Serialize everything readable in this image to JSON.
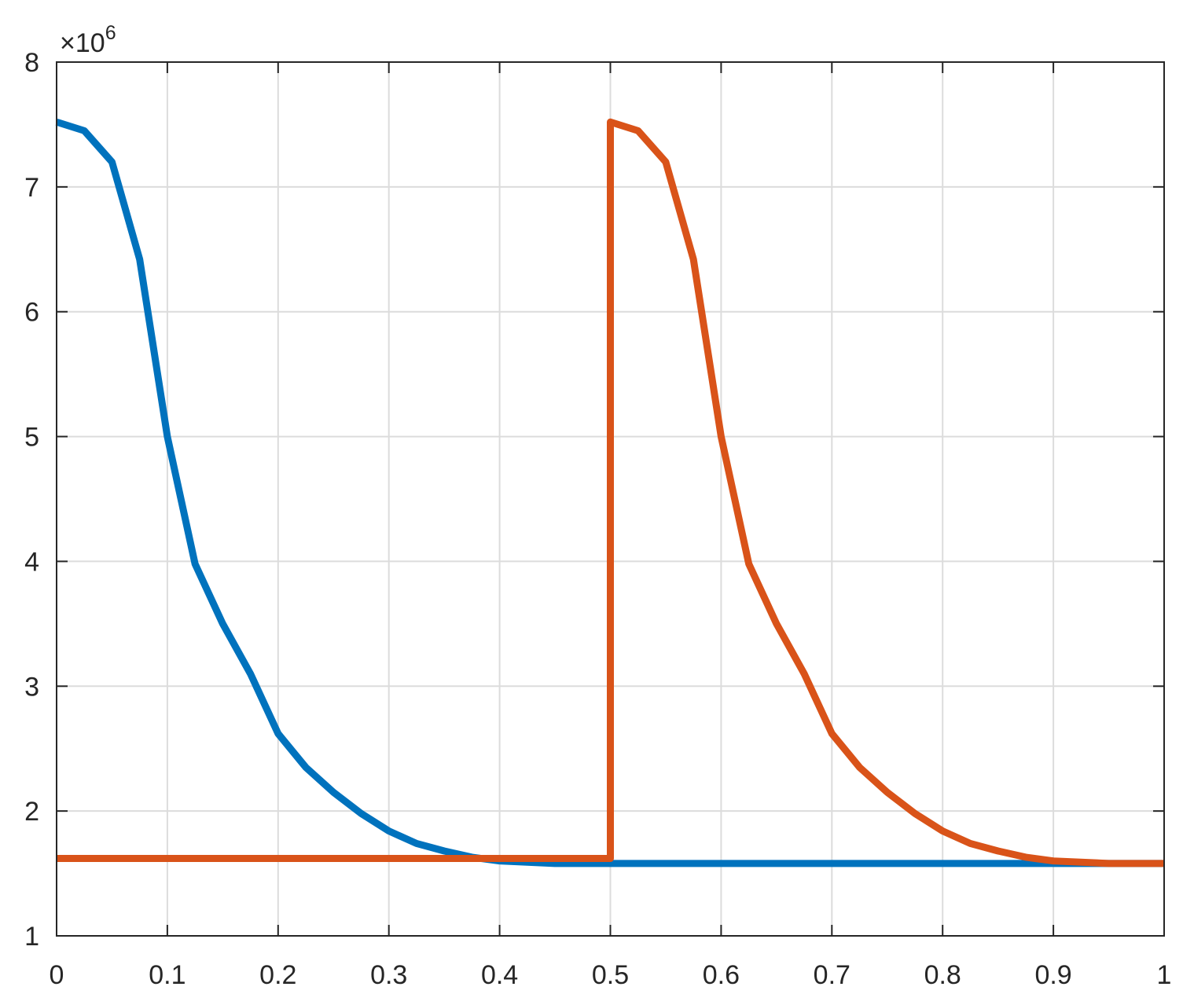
{
  "chart_data": {
    "type": "line",
    "y_multiplier": {
      "base": "×10",
      "exponent": "6"
    },
    "xlim": [
      0,
      1
    ],
    "xticks": [
      0,
      0.1,
      0.2,
      0.3,
      0.4,
      0.5,
      0.6,
      0.7,
      0.8,
      0.9,
      1
    ],
    "ylim": [
      1,
      8
    ],
    "yticks": [
      1,
      2,
      3,
      4,
      5,
      6,
      7,
      8
    ],
    "grid": true,
    "series": [
      {
        "color": "#0072bd",
        "x": [
          0,
          0.025,
          0.05,
          0.075,
          0.1,
          0.125,
          0.15,
          0.175,
          0.2,
          0.225,
          0.25,
          0.275,
          0.3,
          0.325,
          0.35,
          0.375,
          0.4,
          0.45,
          0.5,
          0.6,
          0.7,
          0.8,
          0.9,
          1
        ],
        "values": [
          7.52,
          7.45,
          7.2,
          6.42,
          5.0,
          3.98,
          3.5,
          3.1,
          2.62,
          2.35,
          2.15,
          1.98,
          1.84,
          1.74,
          1.68,
          1.63,
          1.6,
          1.58,
          1.58,
          1.58,
          1.58,
          1.58,
          1.58,
          1.58
        ]
      },
      {
        "color": "#d95319",
        "x": [
          0,
          0.5,
          0.5,
          0.525,
          0.55,
          0.575,
          0.6,
          0.625,
          0.65,
          0.675,
          0.7,
          0.725,
          0.75,
          0.775,
          0.8,
          0.825,
          0.85,
          0.875,
          0.9,
          0.95,
          1
        ],
        "values": [
          1.62,
          1.62,
          7.52,
          7.45,
          7.2,
          6.42,
          5.0,
          3.98,
          3.5,
          3.1,
          2.62,
          2.35,
          2.15,
          1.98,
          1.84,
          1.74,
          1.68,
          1.63,
          1.6,
          1.58,
          1.58
        ]
      }
    ]
  }
}
